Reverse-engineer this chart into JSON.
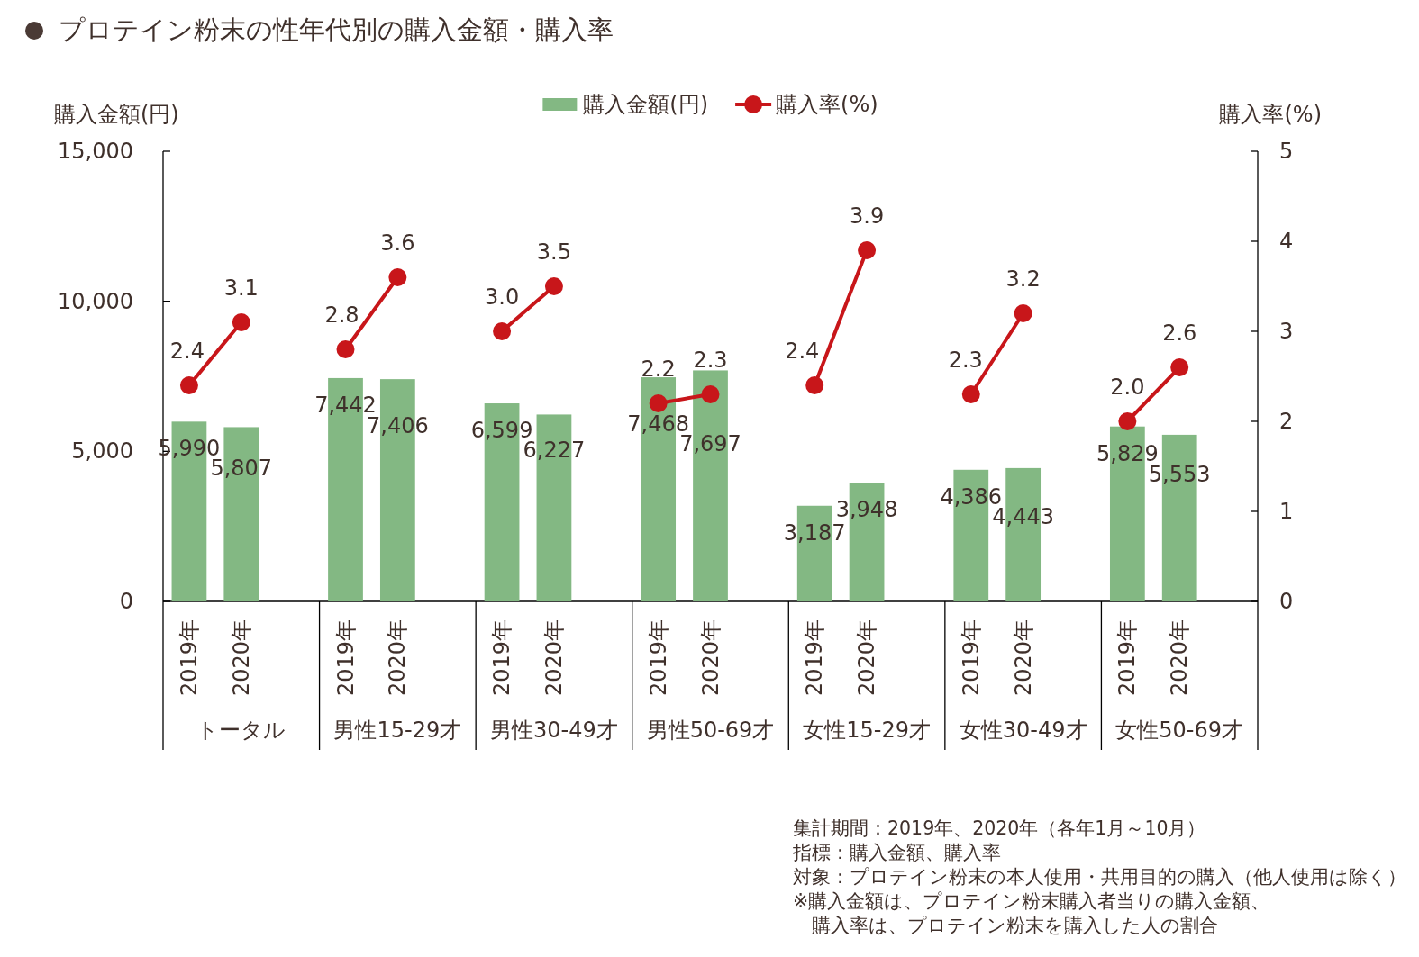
{
  "chart_data": {
    "type": "bar",
    "title": "プロテイン粉末の性年代別の購入金額・購入率",
    "ylabel": "購入金額(円)",
    "y2label": "購入率(%)",
    "categories": [
      "2019年",
      "2020年",
      null,
      "2019年",
      "2020年",
      null,
      "2019年",
      "2020年",
      null,
      "2019年",
      "2020年",
      null,
      "2019年",
      "2020年",
      null,
      "2019年",
      "2020年",
      null,
      "2019年",
      "2020年",
      null
    ],
    "series": [
      {
        "name": "購入金額(円)",
        "color": "#83b883",
        "values": [
          5990,
          5807,
          null,
          7442,
          7406,
          null,
          6599,
          6227,
          null,
          7468,
          7697,
          null,
          3187,
          3948,
          null,
          4386,
          4443,
          null,
          5829,
          5553,
          null
        ],
        "value_labels": [
          "5,990",
          "5,807",
          null,
          "7,442",
          "7,406",
          null,
          "6,599",
          "6,227",
          null,
          "7,468",
          "7,697",
          null,
          "3,187",
          "3,948",
          null,
          "4,386",
          "4,443",
          null,
          "5,829",
          "5,553",
          null
        ]
      },
      {
        "name": "購入率(%)",
        "type": "line",
        "axis": "y2",
        "color": "#c8161a",
        "marker": "circle",
        "line_style": "solid",
        "values": [
          2.4,
          3.1,
          null,
          2.8,
          3.6,
          null,
          3.0,
          3.5,
          null,
          2.2,
          2.3,
          null,
          2.4,
          3.9,
          null,
          2.3,
          3.2,
          null,
          2.0,
          2.6,
          null
        ],
        "value_labels": [
          "2.4",
          "3.1",
          null,
          "2.8",
          "3.6",
          null,
          "3.0",
          "3.5",
          null,
          "2.2",
          "2.3",
          null,
          "2.4",
          "3.9",
          null,
          "2.3",
          "3.2",
          null,
          "2.0",
          "2.6",
          null
        ]
      }
    ],
    "ylim": [
      0,
      15000
    ],
    "yticks": [
      0,
      {
        "value": 5000,
        "label": "5,000"
      },
      {
        "value": 10000,
        "label": "10,000"
      },
      {
        "value": 15000,
        "label": "15,000"
      }
    ],
    "y2lim": [
      0,
      5
    ],
    "y2ticks": [
      0,
      1,
      2,
      3,
      4,
      5
    ],
    "legend": "top",
    "annotations": [
      "トータル",
      "男性15-29才",
      "男性30-49才",
      "男性50-69才",
      "女性15-29才",
      "女性30-49才",
      "女性50-69才",
      "集計期間：2019年、2020年（各年1月～10月）",
      "指標：購入金額、購入率",
      "対象：プロテイン粉末の本人使用・共用目的の購入（他人使用は除く）",
      "※購入金額は、プロテイン粉末購入者当りの購入金額、",
      "　購入率は、プロテイン粉末を購入した人の割合"
    ]
  }
}
